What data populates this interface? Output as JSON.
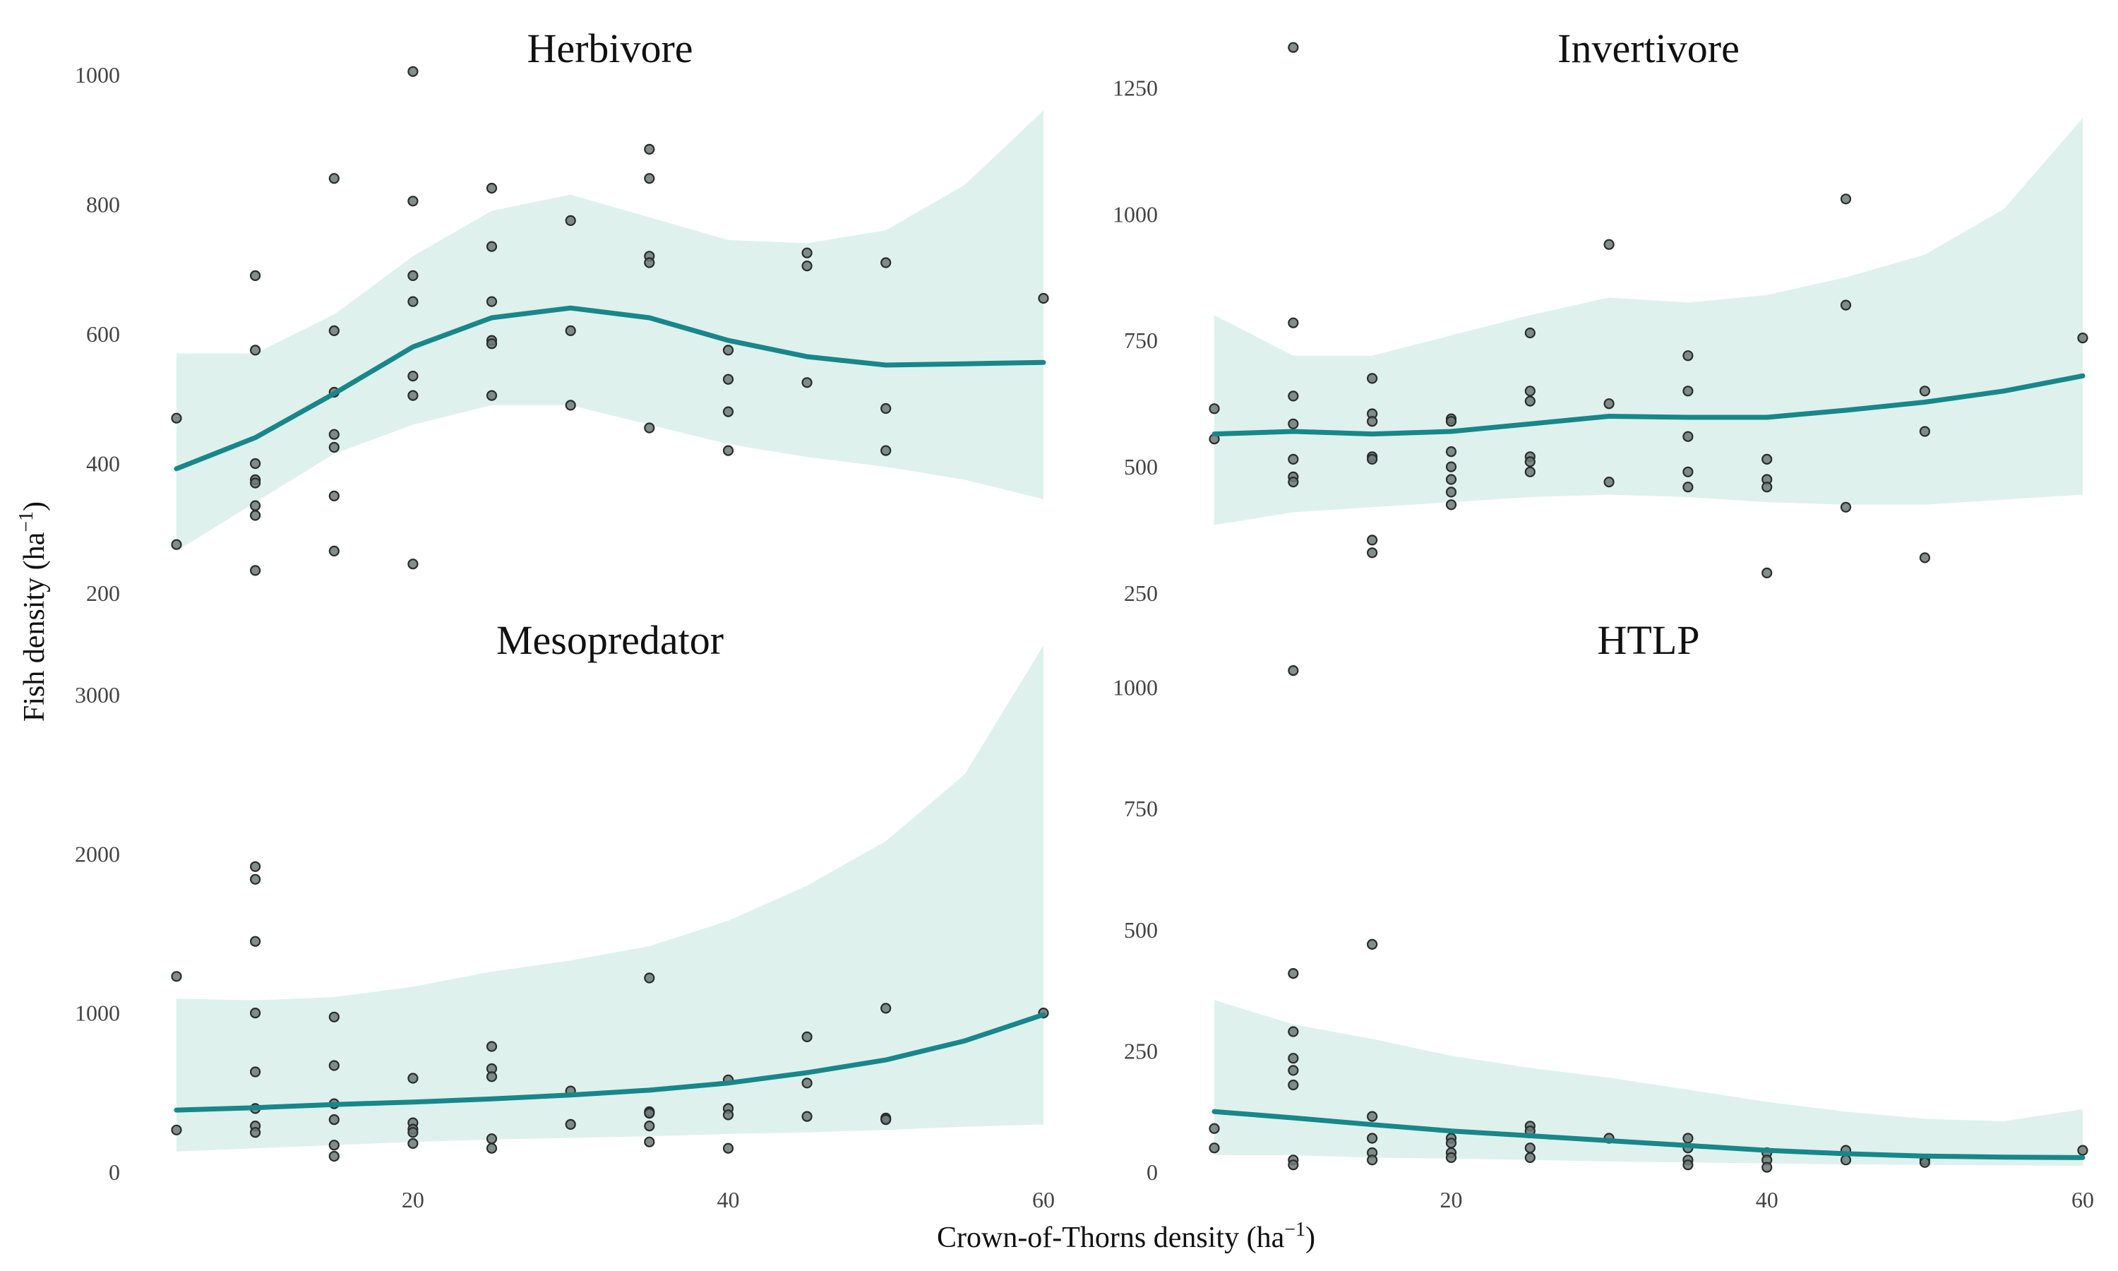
{
  "figure": {
    "xlabel_main": "Crown-of-Thorns density (ha",
    "xlabel_sup": "−1",
    "xlabel_tail": ")",
    "ylabel_main": "Fish density (ha",
    "ylabel_sup": "−1",
    "ylabel_tail": ")",
    "colors": {
      "line": "#17878a",
      "ribbon": "#dff1ec",
      "point_fill": "#6b7a76",
      "point_stroke": "#2b2b2b"
    }
  },
  "chart_data": [
    {
      "type": "scatter",
      "title": "Herbivore",
      "xlim": [
        5,
        60
      ],
      "ylim": [
        200,
        1050
      ],
      "xticks": [
        20,
        40,
        60
      ],
      "show_xticks": false,
      "yticks": [
        200,
        400,
        600,
        800,
        1000
      ],
      "points": [
        [
          5,
          470
        ],
        [
          5,
          275
        ],
        [
          10,
          690
        ],
        [
          10,
          575
        ],
        [
          10,
          400
        ],
        [
          10,
          375
        ],
        [
          10,
          370
        ],
        [
          10,
          335
        ],
        [
          10,
          320
        ],
        [
          10,
          235
        ],
        [
          15,
          840
        ],
        [
          15,
          605
        ],
        [
          15,
          510
        ],
        [
          15,
          445
        ],
        [
          15,
          425
        ],
        [
          15,
          350
        ],
        [
          15,
          265
        ],
        [
          20,
          1005
        ],
        [
          20,
          805
        ],
        [
          20,
          690
        ],
        [
          20,
          650
        ],
        [
          20,
          535
        ],
        [
          20,
          505
        ],
        [
          20,
          245
        ],
        [
          25,
          825
        ],
        [
          25,
          735
        ],
        [
          25,
          650
        ],
        [
          25,
          590
        ],
        [
          25,
          585
        ],
        [
          25,
          505
        ],
        [
          30,
          775
        ],
        [
          30,
          605
        ],
        [
          30,
          490
        ],
        [
          35,
          885
        ],
        [
          35,
          840
        ],
        [
          35,
          720
        ],
        [
          35,
          710
        ],
        [
          35,
          455
        ],
        [
          40,
          575
        ],
        [
          40,
          530
        ],
        [
          40,
          480
        ],
        [
          40,
          420
        ],
        [
          45,
          725
        ],
        [
          45,
          705
        ],
        [
          45,
          525
        ],
        [
          50,
          710
        ],
        [
          50,
          485
        ],
        [
          50,
          420
        ],
        [
          60,
          655
        ]
      ],
      "fit": [
        [
          5,
          392
        ],
        [
          10,
          440
        ],
        [
          15,
          508
        ],
        [
          20,
          580
        ],
        [
          25,
          625
        ],
        [
          30,
          640
        ],
        [
          35,
          625
        ],
        [
          40,
          590
        ],
        [
          45,
          565
        ],
        [
          50,
          552
        ],
        [
          55,
          554
        ],
        [
          60,
          556
        ]
      ],
      "lower": [
        [
          5,
          265
        ],
        [
          10,
          340
        ],
        [
          15,
          415
        ],
        [
          20,
          460
        ],
        [
          25,
          490
        ],
        [
          30,
          490
        ],
        [
          35,
          460
        ],
        [
          40,
          430
        ],
        [
          45,
          410
        ],
        [
          50,
          395
        ],
        [
          55,
          375
        ],
        [
          60,
          345
        ]
      ],
      "upper": [
        [
          5,
          570
        ],
        [
          10,
          570
        ],
        [
          15,
          630
        ],
        [
          20,
          720
        ],
        [
          25,
          790
        ],
        [
          30,
          815
        ],
        [
          35,
          780
        ],
        [
          40,
          745
        ],
        [
          45,
          740
        ],
        [
          50,
          760
        ],
        [
          55,
          830
        ],
        [
          60,
          945
        ]
      ]
    },
    {
      "type": "scatter",
      "title": "Invertivore",
      "xlim": [
        5,
        60
      ],
      "ylim": [
        250,
        1340
      ],
      "xticks": [
        20,
        40,
        60
      ],
      "show_xticks": false,
      "yticks": [
        250,
        500,
        750,
        1000,
        1250
      ],
      "points": [
        [
          5,
          615
        ],
        [
          5,
          555
        ],
        [
          10,
          1330
        ],
        [
          10,
          785
        ],
        [
          10,
          640
        ],
        [
          10,
          585
        ],
        [
          10,
          515
        ],
        [
          10,
          480
        ],
        [
          10,
          470
        ],
        [
          15,
          675
        ],
        [
          15,
          605
        ],
        [
          15,
          590
        ],
        [
          15,
          520
        ],
        [
          15,
          515
        ],
        [
          15,
          355
        ],
        [
          15,
          330
        ],
        [
          20,
          595
        ],
        [
          20,
          590
        ],
        [
          20,
          530
        ],
        [
          20,
          500
        ],
        [
          20,
          475
        ],
        [
          20,
          450
        ],
        [
          20,
          425
        ],
        [
          25,
          765
        ],
        [
          25,
          650
        ],
        [
          25,
          630
        ],
        [
          25,
          520
        ],
        [
          25,
          510
        ],
        [
          25,
          490
        ],
        [
          30,
          940
        ],
        [
          30,
          625
        ],
        [
          30,
          470
        ],
        [
          35,
          720
        ],
        [
          35,
          650
        ],
        [
          35,
          560
        ],
        [
          35,
          490
        ],
        [
          35,
          460
        ],
        [
          40,
          515
        ],
        [
          40,
          475
        ],
        [
          40,
          460
        ],
        [
          40,
          290
        ],
        [
          45,
          1030
        ],
        [
          45,
          820
        ],
        [
          45,
          420
        ],
        [
          50,
          650
        ],
        [
          50,
          570
        ],
        [
          50,
          320
        ],
        [
          60,
          755
        ]
      ],
      "fit": [
        [
          5,
          565
        ],
        [
          10,
          570
        ],
        [
          15,
          565
        ],
        [
          20,
          570
        ],
        [
          25,
          585
        ],
        [
          30,
          600
        ],
        [
          35,
          598
        ],
        [
          40,
          598
        ],
        [
          45,
          612
        ],
        [
          50,
          628
        ],
        [
          55,
          650
        ],
        [
          60,
          680
        ]
      ],
      "lower": [
        [
          5,
          385
        ],
        [
          10,
          410
        ],
        [
          15,
          420
        ],
        [
          20,
          430
        ],
        [
          25,
          440
        ],
        [
          30,
          445
        ],
        [
          35,
          440
        ],
        [
          40,
          430
        ],
        [
          45,
          425
        ],
        [
          50,
          425
        ],
        [
          55,
          435
        ],
        [
          60,
          445
        ]
      ],
      "upper": [
        [
          5,
          800
        ],
        [
          10,
          720
        ],
        [
          15,
          720
        ],
        [
          20,
          760
        ],
        [
          25,
          800
        ],
        [
          30,
          835
        ],
        [
          35,
          825
        ],
        [
          40,
          840
        ],
        [
          45,
          875
        ],
        [
          50,
          920
        ],
        [
          55,
          1010
        ],
        [
          60,
          1190
        ]
      ]
    },
    {
      "type": "scatter",
      "title": "Mesopredator",
      "xlim": [
        5,
        60
      ],
      "ylim": [
        0,
        3350
      ],
      "xticks": [
        20,
        40,
        60
      ],
      "show_xticks": true,
      "yticks": [
        0,
        1000,
        2000,
        3000
      ],
      "points": [
        [
          5,
          1230
        ],
        [
          5,
          265
        ],
        [
          10,
          1920
        ],
        [
          10,
          1840
        ],
        [
          10,
          1450
        ],
        [
          10,
          1000
        ],
        [
          10,
          630
        ],
        [
          10,
          400
        ],
        [
          10,
          290
        ],
        [
          10,
          250
        ],
        [
          15,
          975
        ],
        [
          15,
          670
        ],
        [
          15,
          430
        ],
        [
          15,
          330
        ],
        [
          15,
          170
        ],
        [
          15,
          100
        ],
        [
          20,
          590
        ],
        [
          20,
          310
        ],
        [
          20,
          270
        ],
        [
          20,
          250
        ],
        [
          20,
          180
        ],
        [
          25,
          790
        ],
        [
          25,
          650
        ],
        [
          25,
          600
        ],
        [
          25,
          210
        ],
        [
          25,
          150
        ],
        [
          30,
          510
        ],
        [
          30,
          300
        ],
        [
          35,
          1220
        ],
        [
          35,
          380
        ],
        [
          35,
          370
        ],
        [
          35,
          290
        ],
        [
          35,
          190
        ],
        [
          40,
          580
        ],
        [
          40,
          400
        ],
        [
          40,
          360
        ],
        [
          40,
          150
        ],
        [
          45,
          850
        ],
        [
          45,
          560
        ],
        [
          45,
          350
        ],
        [
          50,
          1030
        ],
        [
          50,
          340
        ],
        [
          50,
          330
        ],
        [
          60,
          1000
        ]
      ],
      "fit": [
        [
          5,
          390
        ],
        [
          10,
          405
        ],
        [
          15,
          425
        ],
        [
          20,
          440
        ],
        [
          25,
          460
        ],
        [
          30,
          485
        ],
        [
          35,
          515
        ],
        [
          40,
          560
        ],
        [
          45,
          625
        ],
        [
          50,
          705
        ],
        [
          55,
          825
        ],
        [
          60,
          990
        ]
      ],
      "lower": [
        [
          5,
          130
        ],
        [
          10,
          150
        ],
        [
          15,
          170
        ],
        [
          20,
          190
        ],
        [
          25,
          205
        ],
        [
          30,
          215
        ],
        [
          35,
          225
        ],
        [
          40,
          240
        ],
        [
          45,
          250
        ],
        [
          50,
          265
        ],
        [
          55,
          285
        ],
        [
          60,
          300
        ]
      ],
      "upper": [
        [
          5,
          1090
        ],
        [
          10,
          1080
        ],
        [
          15,
          1100
        ],
        [
          20,
          1165
        ],
        [
          25,
          1260
        ],
        [
          30,
          1330
        ],
        [
          35,
          1420
        ],
        [
          40,
          1580
        ],
        [
          45,
          1800
        ],
        [
          50,
          2080
        ],
        [
          55,
          2500
        ],
        [
          60,
          3310
        ]
      ]
    },
    {
      "type": "scatter",
      "title": "HTLP",
      "xlim": [
        5,
        60
      ],
      "ylim": [
        0,
        1100
      ],
      "xticks": [
        20,
        40,
        60
      ],
      "show_xticks": true,
      "yticks": [
        0,
        250,
        500,
        750,
        1000
      ],
      "points": [
        [
          5,
          90
        ],
        [
          5,
          50
        ],
        [
          10,
          1035
        ],
        [
          10,
          410
        ],
        [
          10,
          290
        ],
        [
          10,
          235
        ],
        [
          10,
          210
        ],
        [
          10,
          180
        ],
        [
          10,
          25
        ],
        [
          10,
          15
        ],
        [
          15,
          470
        ],
        [
          15,
          115
        ],
        [
          15,
          70
        ],
        [
          15,
          40
        ],
        [
          15,
          25
        ],
        [
          20,
          70
        ],
        [
          20,
          60
        ],
        [
          20,
          40
        ],
        [
          20,
          30
        ],
        [
          25,
          95
        ],
        [
          25,
          85
        ],
        [
          25,
          50
        ],
        [
          25,
          30
        ],
        [
          30,
          70
        ],
        [
          35,
          70
        ],
        [
          35,
          50
        ],
        [
          35,
          25
        ],
        [
          35,
          15
        ],
        [
          40,
          40
        ],
        [
          40,
          25
        ],
        [
          40,
          10
        ],
        [
          45,
          45
        ],
        [
          45,
          25
        ],
        [
          50,
          25
        ],
        [
          50,
          20
        ],
        [
          60,
          45
        ]
      ],
      "fit": [
        [
          5,
          125
        ],
        [
          10,
          112
        ],
        [
          15,
          98
        ],
        [
          20,
          85
        ],
        [
          25,
          75
        ],
        [
          30,
          65
        ],
        [
          35,
          55
        ],
        [
          40,
          45
        ],
        [
          45,
          38
        ],
        [
          50,
          33
        ],
        [
          55,
          31
        ],
        [
          60,
          30
        ]
      ],
      "lower": [
        [
          5,
          35
        ],
        [
          10,
          35
        ],
        [
          15,
          30
        ],
        [
          20,
          28
        ],
        [
          25,
          25
        ],
        [
          30,
          22
        ],
        [
          35,
          20
        ],
        [
          40,
          18
        ],
        [
          45,
          16
        ],
        [
          50,
          15
        ],
        [
          55,
          14
        ],
        [
          60,
          13
        ]
      ],
      "upper": [
        [
          5,
          355
        ],
        [
          10,
          305
        ],
        [
          15,
          275
        ],
        [
          20,
          240
        ],
        [
          25,
          215
        ],
        [
          30,
          195
        ],
        [
          35,
          170
        ],
        [
          40,
          145
        ],
        [
          45,
          125
        ],
        [
          50,
          110
        ],
        [
          55,
          105
        ],
        [
          60,
          130
        ]
      ]
    }
  ]
}
